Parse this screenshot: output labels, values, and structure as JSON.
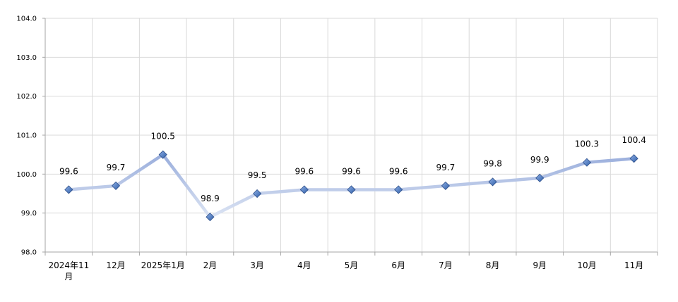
{
  "chart_data": {
    "type": "line",
    "title": "",
    "xlabel": "",
    "ylabel": "",
    "categories": [
      [
        "2024年11",
        "月"
      ],
      [
        "12月"
      ],
      [
        "2025年1月"
      ],
      [
        "2月"
      ],
      [
        "3月"
      ],
      [
        "4月"
      ],
      [
        "5月"
      ],
      [
        "6月"
      ],
      [
        "7月"
      ],
      [
        "8月"
      ],
      [
        "9月"
      ],
      [
        "10月"
      ],
      [
        "11月"
      ]
    ],
    "values": [
      99.6,
      99.7,
      100.5,
      98.9,
      99.5,
      99.6,
      99.6,
      99.6,
      99.7,
      99.8,
      99.9,
      100.3,
      100.4
    ],
    "data_labels": [
      "99.6",
      "99.7",
      "100.5",
      "98.9",
      "99.5",
      "99.6",
      "99.6",
      "99.6",
      "99.7",
      "99.8",
      "99.9",
      "100.3",
      "100.4"
    ],
    "ylim": [
      98.0,
      104.0
    ],
    "yticks": [
      98.0,
      99.0,
      100.0,
      101.0,
      102.0,
      103.0,
      104.0
    ],
    "ytick_labels": [
      "98.0",
      "99.0",
      "100.0",
      "101.0",
      "102.0",
      "103.0",
      "104.0"
    ],
    "grid": true,
    "legend": "none",
    "colors": {
      "line_light": "#dde5f4",
      "line_dark": "#9aaedc",
      "marker": "#4a76bd",
      "marker_edge": "#2d4f8a"
    }
  }
}
